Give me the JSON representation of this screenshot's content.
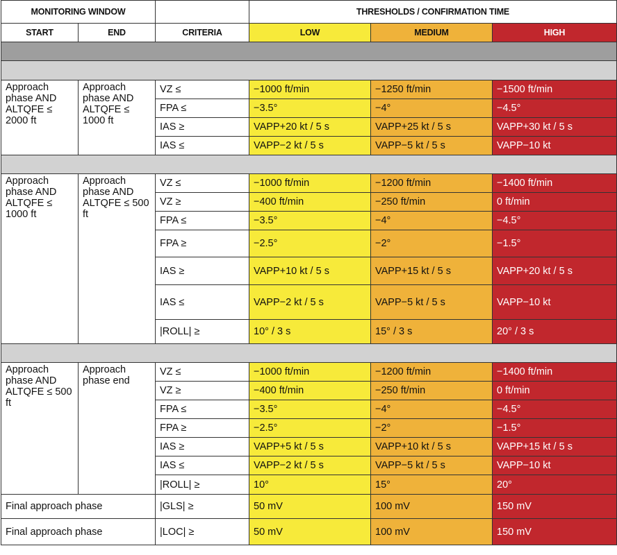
{
  "header": {
    "monitoring_window": "MONITORING WINDOW",
    "thresholds": "THRESHOLDS / CONFIRMATION TIME",
    "start": "START",
    "end": "END",
    "criteria": "CRITERIA",
    "low": "LOW",
    "medium": "MEDIUM",
    "high": "HIGH"
  },
  "groups": [
    {
      "start": "Approach phase AND ALTQFE ≤ 2000 ft",
      "end": "Approach phase AND ALTQFE ≤ 1000 ft",
      "rows": [
        [
          "VZ ≤",
          "−1000 ft/min",
          "−1250 ft/min",
          "−1500 ft/min"
        ],
        [
          "FPA ≤",
          "−3.5°",
          "−4°",
          "−4.5°"
        ],
        [
          "IAS ≥",
          "VAPP+20 kt / 5 s",
          "VAPP+25 kt / 5 s",
          "VAPP+30 kt / 5 s"
        ],
        [
          "IAS ≤",
          "VAPP−2 kt / 5 s",
          "VAPP−5 kt / 5 s",
          "VAPP−10 kt"
        ]
      ]
    },
    {
      "start": "Approach phase AND ALTQFE ≤ 1000 ft",
      "end": "Approach phase AND ALTQFE ≤ 500 ft",
      "rows": [
        [
          "VZ ≤",
          "−1000 ft/min",
          "−1200 ft/min",
          "−1400 ft/min"
        ],
        [
          "VZ ≥",
          "−400 ft/min",
          "−250 ft/min",
          "0 ft/min"
        ],
        [
          "FPA ≤",
          "−3.5°",
          "−4°",
          "−4.5°"
        ],
        [
          "FPA ≥",
          "−2.5°",
          "−2°",
          "−1.5°"
        ],
        [
          "IAS ≥",
          "VAPP+10 kt / 5 s",
          "VAPP+15 kt / 5 s",
          "VAPP+20 kt / 5 s"
        ],
        [
          "IAS ≤",
          "VAPP−2 kt / 5 s",
          "VAPP−5 kt / 5 s",
          "VAPP−10 kt"
        ],
        [
          "|ROLL| ≥",
          "10° / 3 s",
          "15° / 3 s",
          "20° / 3 s"
        ]
      ]
    },
    {
      "start": "Approach phase AND ALTQFE ≤ 500 ft",
      "end": "Approach phase end",
      "rows": [
        [
          "VZ ≤",
          "−1000 ft/min",
          "−1200 ft/min",
          "−1400 ft/min"
        ],
        [
          "VZ ≥",
          "−400 ft/min",
          "−250 ft/min",
          "0 ft/min"
        ],
        [
          "FPA ≤",
          "−3.5°",
          "−4°",
          "−4.5°"
        ],
        [
          "FPA ≥",
          "−2.5°",
          "−2°",
          "−1.5°"
        ],
        [
          "IAS ≥",
          "VAPP+5 kt / 5 s",
          "VAPP+10 kt / 5 s",
          "VAPP+15 kt / 5 s"
        ],
        [
          "IAS ≤",
          "VAPP−2 kt / 5 s",
          "VAPP−5 kt / 5 s",
          "VAPP−10 kt"
        ],
        [
          "|ROLL| ≥",
          "10°",
          "15°",
          "20°"
        ]
      ]
    }
  ],
  "final_rows": [
    [
      "Final approach phase",
      "|GLS| ≥",
      "50 mV",
      "100 mV",
      "150 mV"
    ],
    [
      "Final approach phase",
      "|LOC| ≥",
      "50 mV",
      "100 mV",
      "150 mV"
    ]
  ]
}
